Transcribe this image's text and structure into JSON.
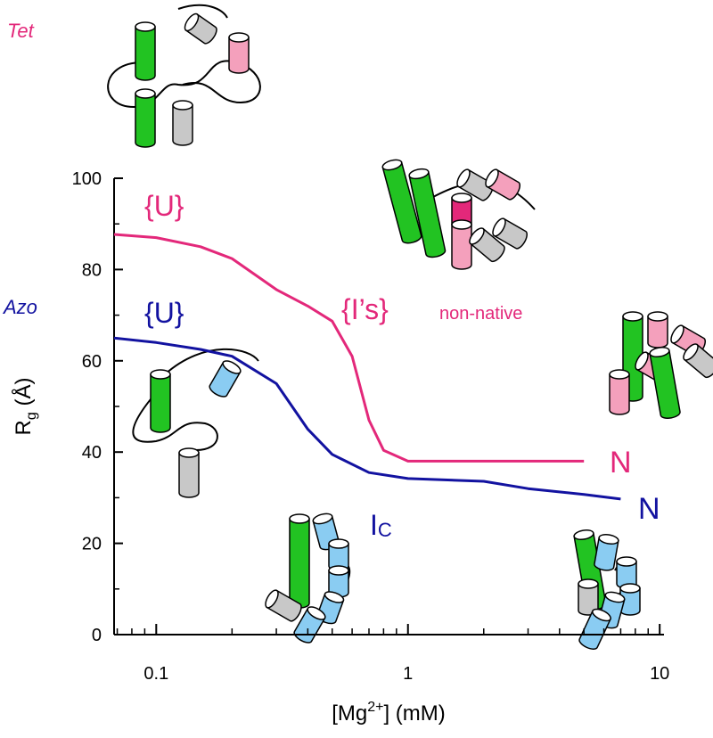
{
  "chart_data": {
    "type": "line",
    "xlabel": [
      "[Mg",
      "2+",
      "] (mM)"
    ],
    "ylabel": [
      "R",
      "g",
      " (Å)"
    ],
    "xscale": "log",
    "xlim": [
      0.068,
      10.4
    ],
    "ylim": [
      0,
      100
    ],
    "xticks": [
      0.1,
      1,
      10
    ],
    "xminorticks": [
      0.07,
      0.08,
      0.09,
      0.2,
      0.3,
      0.4,
      0.5,
      0.6,
      0.7,
      0.8,
      0.9,
      2,
      3,
      4,
      5,
      6,
      7,
      8,
      9
    ],
    "yticks": [
      0,
      20,
      40,
      60,
      80,
      100
    ],
    "yminorticks": [
      10,
      30,
      50,
      70,
      90
    ],
    "series": [
      {
        "name": "Tet",
        "color": "#e3287a",
        "x": [
          0.068,
          0.1,
          0.15,
          0.2,
          0.3,
          0.4,
          0.5,
          0.6,
          0.7,
          0.8,
          1,
          2,
          5
        ],
        "values": [
          87.7,
          87,
          85,
          82.4,
          75.6,
          72,
          68.7,
          61,
          47,
          40.4,
          38,
          38,
          38
        ]
      },
      {
        "name": "Azo",
        "color": "#1212a0",
        "x": [
          0.068,
          0.1,
          0.15,
          0.2,
          0.3,
          0.4,
          0.5,
          0.7,
          1,
          2,
          3,
          5,
          7
        ],
        "values": [
          65,
          64,
          62.5,
          61,
          55,
          45,
          39.5,
          35.5,
          34.2,
          33.6,
          32,
          30.7,
          29.7
        ]
      }
    ],
    "annotations": {
      "tet_u": "{U}",
      "azo_u": "{U}",
      "tet_i": "{I’s}",
      "non_native": "non-native",
      "tet_n": "N",
      "azo_n": "N",
      "ic": [
        "I",
        "C"
      ]
    }
  }
}
